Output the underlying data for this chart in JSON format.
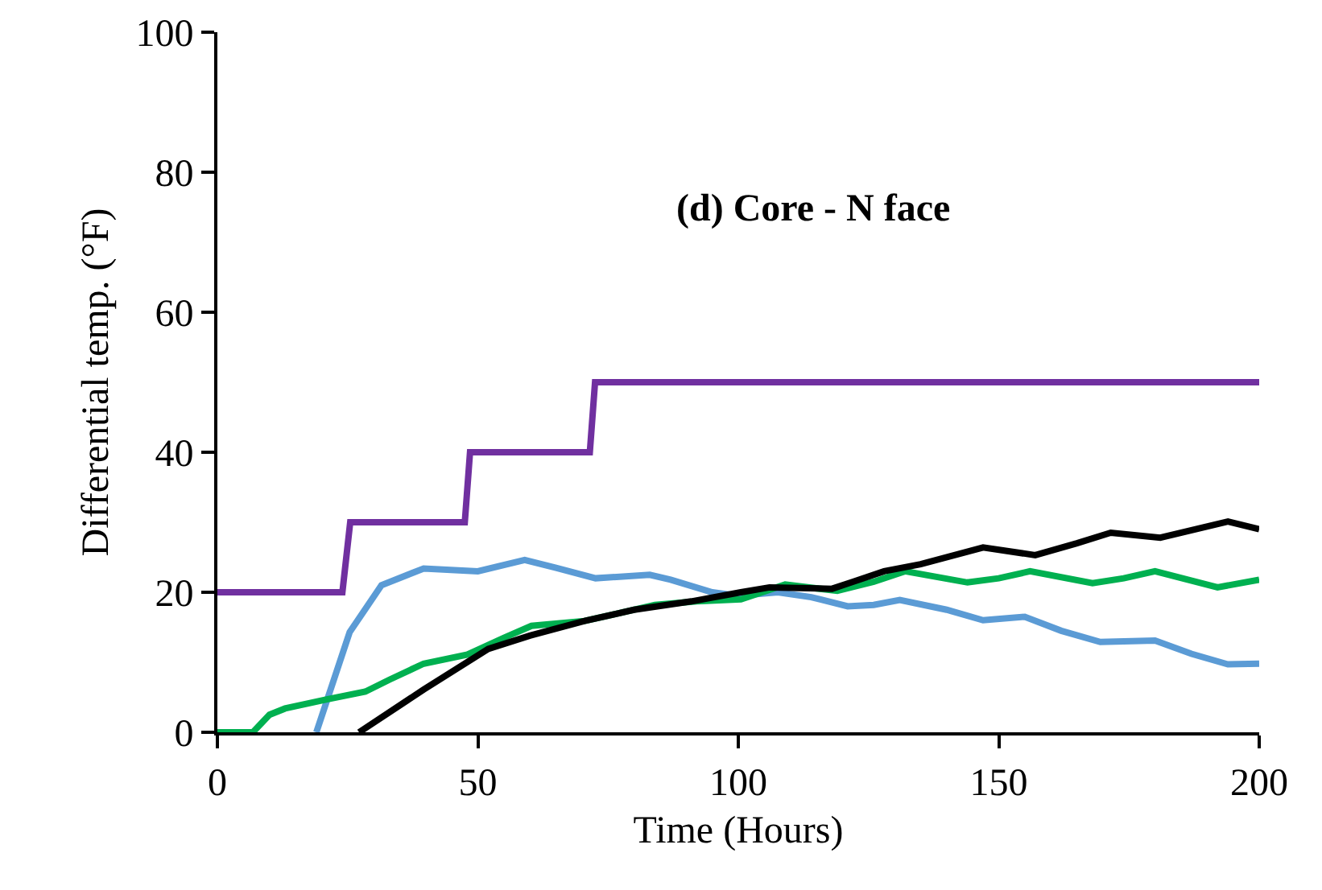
{
  "chart_data": {
    "type": "line",
    "xlabel": "Time (Hours)",
    "ylabel": "Differential temp. (°F)",
    "annotations": [
      "(d) Core - N face"
    ],
    "xlim": [
      0,
      200
    ],
    "xticks": [
      0,
      50,
      100,
      150,
      200
    ],
    "ylim": [
      0,
      100
    ],
    "yticks": [
      0,
      20,
      40,
      60,
      80,
      100
    ],
    "grid": false,
    "marker": "none",
    "line_style": "solid",
    "series": [
      {
        "color": "#7030a0",
        "x": [
          0,
          24,
          25.5,
          47.5,
          48.5,
          71.5,
          72.5,
          200
        ],
        "values": [
          20,
          20,
          30,
          30,
          40,
          40,
          50,
          50
        ]
      },
      {
        "color": "#5b9bd5",
        "x": [
          19,
          25.4,
          31.5,
          39.6,
          50,
          59,
          65,
          72.6,
          83,
          87,
          95,
          100,
          107.6,
          114,
          121,
          126,
          131,
          140,
          147,
          155,
          162,
          169.5,
          180,
          187,
          194,
          200
        ],
        "values": [
          0,
          14.3,
          21,
          23.4,
          23,
          24.6,
          23.5,
          22,
          22.5,
          21.8,
          20,
          19.5,
          20,
          19.3,
          18,
          18.2,
          18.9,
          17.5,
          16,
          16.5,
          14.5,
          12.9,
          13.1,
          11.2,
          9.7,
          9.8
        ]
      },
      {
        "color": "#00b050",
        "x": [
          0,
          6.8,
          10,
          13,
          21,
          28.4,
          33,
          39.6,
          48,
          55,
          60.3,
          70.5,
          77,
          84,
          92,
          100.5,
          109,
          119,
          126,
          132,
          144,
          150,
          156,
          168,
          174,
          180,
          192,
          200
        ],
        "values": [
          0,
          0,
          2.5,
          3.4,
          4.7,
          5.8,
          7.5,
          9.8,
          11.1,
          13.5,
          15.2,
          15.9,
          17,
          18.2,
          18.7,
          19,
          21.1,
          20.2,
          21.5,
          23,
          21.4,
          22,
          23,
          21.3,
          22,
          23,
          20.7,
          21.8
        ]
      },
      {
        "color": "#000000",
        "x": [
          27.2,
          39.6,
          52,
          60,
          70.5,
          80,
          91,
          100.5,
          106,
          118,
          122,
          128,
          135,
          147,
          157,
          165,
          171.5,
          181,
          194,
          200
        ],
        "values": [
          0,
          6.1,
          11.9,
          13.8,
          15.9,
          17.5,
          18.7,
          20,
          20.7,
          20.5,
          21.5,
          23,
          24,
          26.4,
          25.3,
          27,
          28.5,
          27.8,
          30.1,
          29
        ]
      }
    ]
  }
}
